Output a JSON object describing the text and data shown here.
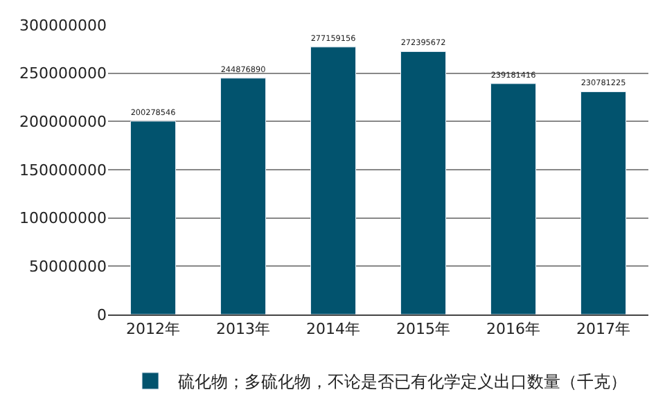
{
  "chart_data": {
    "type": "bar",
    "categories": [
      "2012年",
      "2013年",
      "2014年",
      "2015年",
      "2016年",
      "2017年"
    ],
    "series": [
      {
        "name": "硫化物；多硫化物，不论是否已有化学定义出口数量（千克）",
        "color": "#02536e",
        "values": [
          200278546,
          244876890,
          277159156,
          272395672,
          239181416,
          230781225
        ]
      }
    ],
    "ylim": [
      0,
      300000000
    ],
    "yticks": [
      0,
      50000000,
      100000000,
      150000000,
      200000000,
      250000000,
      300000000
    ],
    "grid": "y",
    "legend": "bottom",
    "data_labels": true
  }
}
